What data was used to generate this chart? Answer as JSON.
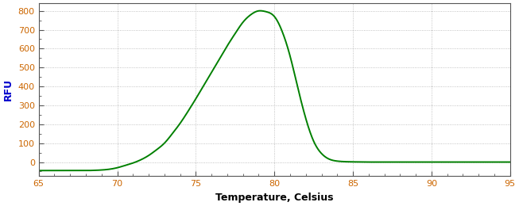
{
  "title": "",
  "xlabel": "Temperature, Celsius",
  "ylabel": "RFU",
  "xlim": [
    65,
    95
  ],
  "ylim": [
    -75,
    840
  ],
  "xticks": [
    65,
    70,
    75,
    80,
    85,
    90,
    95
  ],
  "yticks": [
    0,
    100,
    200,
    300,
    400,
    500,
    600,
    700,
    800
  ],
  "line_color": "#008000",
  "line_width": 1.4,
  "bg_color": "#ffffff",
  "grid_color": "#aaaaaa",
  "axis_label_color": "#0000cc",
  "tick_label_color": "#cc6600",
  "xlabel_color": "#000000",
  "xlabel_fontsize": 9,
  "xlabel_fontweight": "bold",
  "ylabel_fontsize": 9,
  "tick_fontsize": 8,
  "peak_temp": 79.2,
  "peak_rfu": 800,
  "baseline_rfu": -45,
  "curve_x": [
    65.0,
    65.5,
    66.0,
    66.5,
    67.0,
    67.5,
    68.0,
    68.5,
    69.0,
    69.5,
    70.0,
    70.5,
    71.0,
    71.5,
    72.0,
    72.5,
    73.0,
    73.5,
    74.0,
    74.5,
    75.0,
    75.5,
    76.0,
    76.5,
    77.0,
    77.5,
    78.0,
    78.5,
    79.0,
    79.2,
    79.5,
    80.0,
    80.5,
    81.0,
    81.5,
    82.0,
    82.5,
    83.0,
    83.5,
    84.0,
    84.5,
    85.0,
    86.0,
    87.0,
    88.0,
    89.0,
    90.0,
    91.0,
    92.0,
    95.0
  ],
  "curve_y": [
    -45,
    -45,
    -45,
    -45,
    -45,
    -45,
    -45,
    -44,
    -42,
    -38,
    -30,
    -18,
    -5,
    12,
    35,
    65,
    100,
    150,
    205,
    268,
    335,
    405,
    475,
    545,
    615,
    680,
    740,
    780,
    800,
    800,
    795,
    770,
    690,
    560,
    390,
    230,
    110,
    45,
    15,
    5,
    2,
    1,
    0,
    0,
    0,
    0,
    0,
    0,
    0,
    0
  ]
}
